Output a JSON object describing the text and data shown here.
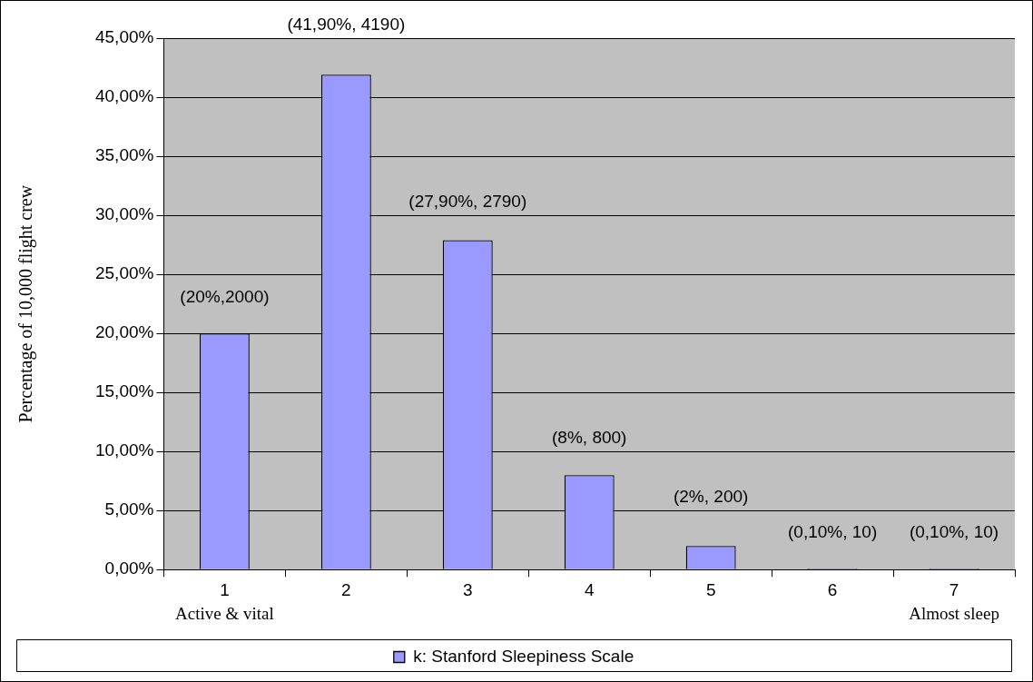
{
  "chart_data": {
    "type": "bar",
    "categories": [
      "1",
      "2",
      "3",
      "4",
      "5",
      "6",
      "7"
    ],
    "series": [
      {
        "name": "k: Stanford Sleepiness Scale",
        "color": "#9999ff",
        "values": [
          20,
          41.9,
          27.9,
          8,
          2,
          0.1,
          0.1
        ],
        "value_labels": [
          "(20%,2000)",
          "(41,90%, 4190)",
          "(27,90%, 2790)",
          "(8%, 800)",
          "(2%, 200)",
          "(0,10%, 10)",
          "(0,10%, 10)"
        ]
      }
    ],
    "ylabel": "Percentage of 10,000 flight crew",
    "ylim": [
      0,
      45
    ],
    "yticks": [
      {
        "value": 0,
        "label": "0,00%"
      },
      {
        "value": 5,
        "label": "5,00%"
      },
      {
        "value": 10,
        "label": "10,00%"
      },
      {
        "value": 15,
        "label": "15,00%"
      },
      {
        "value": 20,
        "label": "20,00%"
      },
      {
        "value": 25,
        "label": "25,00%"
      },
      {
        "value": 30,
        "label": "30,00%"
      },
      {
        "value": 35,
        "label": "35,00%"
      },
      {
        "value": 40,
        "label": "40,00%"
      },
      {
        "value": 45,
        "label": "45,00%"
      }
    ],
    "annotations": [
      "Active & vital",
      "Almost sleep"
    ],
    "grid": "y",
    "legend": "bottom"
  }
}
